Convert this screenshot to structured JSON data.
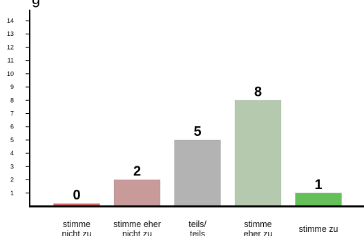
{
  "chart_data": {
    "type": "bar",
    "title": "g",
    "categories": [
      [
        "stimme",
        "nicht zu"
      ],
      [
        "stimme eher",
        "nicht zu"
      ],
      [
        "teils/",
        "teils"
      ],
      [
        "stimme",
        "eher zu"
      ],
      [
        "stimme zu"
      ]
    ],
    "values": [
      0,
      2,
      5,
      8,
      1
    ],
    "data_labels": [
      "0",
      "2",
      "5",
      "8",
      "1"
    ],
    "colors": [
      "#d86666",
      "#c89a9a",
      "#b3b3b3",
      "#b4c9ad",
      "#66c05a"
    ],
    "yticks": [
      1,
      2,
      3,
      4,
      5,
      6,
      7,
      8,
      9,
      10,
      11,
      12,
      13,
      14
    ],
    "ylim": [
      0,
      14.5
    ],
    "xlabel": "",
    "ylabel": ""
  }
}
